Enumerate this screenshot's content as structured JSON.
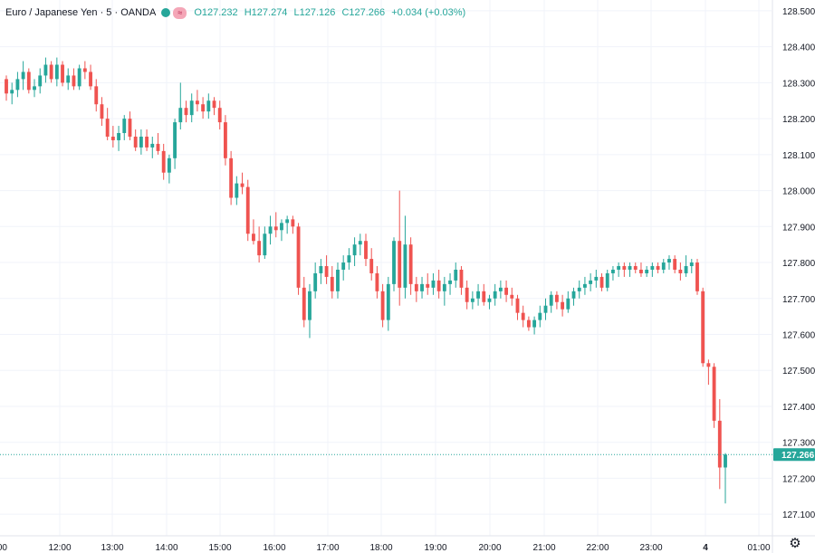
{
  "legend": {
    "symbol": "Euro / Japanese Yen · 5 · OANDA",
    "open": "O127.232",
    "high": "H127.274",
    "low": "L127.126",
    "close": "C127.266",
    "change": "+0.034 (+0.03%)",
    "tag_icon": "≈"
  },
  "colors": {
    "up": "#26a69a",
    "down": "#ef5350",
    "grid": "#f0f3fa",
    "price_line": "#26a69a"
  },
  "settings_icon": "gear-icon",
  "chart_data": {
    "type": "candlestick",
    "title": "Euro / Japanese Yen · 5 · OANDA",
    "ylim": [
      127.04,
      128.53
    ],
    "y_ticks": [
      "128.500",
      "128.400",
      "128.300",
      "128.200",
      "128.100",
      "128.000",
      "127.900",
      "127.800",
      "127.700",
      "127.600",
      "127.500",
      "127.400",
      "127.300",
      "127.200",
      "127.100"
    ],
    "x_ticks": [
      "00",
      "12:00",
      "13:00",
      "14:00",
      "15:00",
      "16:00",
      "17:00",
      "18:00",
      "19:00",
      "20:00",
      "21:00",
      "22:00",
      "23:00",
      "4",
      "01:00"
    ],
    "last_price": "127.266",
    "last_price_value": 127.266,
    "candles": [
      [
        128.31,
        128.32,
        128.25,
        128.27
      ],
      [
        128.27,
        128.3,
        128.24,
        128.28
      ],
      [
        128.28,
        128.33,
        128.26,
        128.31
      ],
      [
        128.31,
        128.36,
        128.28,
        128.33
      ],
      [
        128.33,
        128.34,
        128.27,
        128.28
      ],
      [
        128.28,
        128.31,
        128.26,
        128.29
      ],
      [
        128.29,
        128.34,
        128.27,
        128.32
      ],
      [
        128.32,
        128.37,
        128.3,
        128.35
      ],
      [
        128.35,
        128.36,
        128.3,
        128.31
      ],
      [
        128.31,
        128.37,
        128.29,
        128.35
      ],
      [
        128.35,
        128.36,
        128.29,
        128.3
      ],
      [
        128.3,
        128.34,
        128.28,
        128.32
      ],
      [
        128.32,
        128.34,
        128.28,
        128.29
      ],
      [
        128.29,
        128.35,
        128.28,
        128.34
      ],
      [
        128.34,
        128.36,
        128.31,
        128.33
      ],
      [
        128.33,
        128.35,
        128.28,
        128.29
      ],
      [
        128.29,
        128.31,
        128.22,
        128.24
      ],
      [
        128.24,
        128.26,
        128.18,
        128.2
      ],
      [
        128.2,
        128.23,
        128.14,
        128.15
      ],
      [
        128.15,
        128.18,
        128.12,
        128.14
      ],
      [
        128.14,
        128.18,
        128.11,
        128.16
      ],
      [
        128.16,
        128.21,
        128.14,
        128.2
      ],
      [
        128.2,
        128.22,
        128.14,
        128.15
      ],
      [
        128.15,
        128.17,
        128.11,
        128.12
      ],
      [
        128.12,
        128.17,
        128.1,
        128.15
      ],
      [
        128.15,
        128.17,
        128.11,
        128.12
      ],
      [
        128.12,
        128.15,
        128.09,
        128.13
      ],
      [
        128.13,
        128.16,
        128.1,
        128.11
      ],
      [
        128.11,
        128.13,
        128.03,
        128.05
      ],
      [
        128.05,
        128.1,
        128.02,
        128.09
      ],
      [
        128.09,
        128.2,
        128.06,
        128.19
      ],
      [
        128.19,
        128.3,
        128.17,
        128.23
      ],
      [
        128.23,
        128.25,
        128.19,
        128.21
      ],
      [
        128.21,
        128.27,
        128.19,
        128.25
      ],
      [
        128.25,
        128.28,
        128.22,
        128.24
      ],
      [
        128.24,
        128.26,
        128.2,
        128.22
      ],
      [
        128.22,
        128.27,
        128.2,
        128.25
      ],
      [
        128.25,
        128.26,
        128.21,
        128.23
      ],
      [
        128.23,
        128.25,
        128.17,
        128.19
      ],
      [
        128.19,
        128.21,
        128.07,
        128.09
      ],
      [
        128.09,
        128.11,
        127.96,
        127.98
      ],
      [
        127.98,
        128.04,
        127.96,
        128.02
      ],
      [
        128.02,
        128.05,
        127.99,
        128.01
      ],
      [
        128.01,
        128.03,
        127.86,
        127.88
      ],
      [
        127.88,
        127.92,
        127.85,
        127.86
      ],
      [
        127.86,
        127.9,
        127.8,
        127.82
      ],
      [
        127.82,
        127.9,
        127.81,
        127.88
      ],
      [
        127.88,
        127.93,
        127.85,
        127.9
      ],
      [
        127.9,
        127.94,
        127.87,
        127.89
      ],
      [
        127.89,
        127.92,
        127.86,
        127.91
      ],
      [
        127.91,
        127.93,
        127.88,
        127.92
      ],
      [
        127.92,
        127.93,
        127.88,
        127.9
      ],
      [
        127.9,
        127.91,
        127.71,
        127.73
      ],
      [
        127.73,
        127.76,
        127.62,
        127.64
      ],
      [
        127.64,
        127.74,
        127.59,
        127.72
      ],
      [
        127.72,
        127.8,
        127.7,
        127.77
      ],
      [
        127.77,
        127.81,
        127.74,
        127.79
      ],
      [
        127.79,
        127.82,
        127.74,
        127.76
      ],
      [
        127.76,
        127.79,
        127.7,
        127.72
      ],
      [
        127.72,
        127.8,
        127.7,
        127.78
      ],
      [
        127.78,
        127.82,
        127.75,
        127.8
      ],
      [
        127.8,
        127.84,
        127.78,
        127.82
      ],
      [
        127.82,
        127.87,
        127.79,
        127.85
      ],
      [
        127.85,
        127.88,
        127.82,
        127.86
      ],
      [
        127.86,
        127.88,
        127.79,
        127.81
      ],
      [
        127.81,
        127.84,
        127.75,
        127.77
      ],
      [
        127.77,
        127.79,
        127.7,
        127.72
      ],
      [
        127.72,
        127.74,
        127.62,
        127.64
      ],
      [
        127.64,
        127.76,
        127.61,
        127.74
      ],
      [
        127.74,
        127.87,
        127.72,
        127.86
      ],
      [
        127.86,
        128.0,
        127.68,
        127.73
      ],
      [
        127.73,
        127.93,
        127.7,
        127.85
      ],
      [
        127.85,
        127.87,
        127.71,
        127.74
      ],
      [
        127.74,
        127.76,
        127.69,
        127.72
      ],
      [
        127.72,
        127.76,
        127.7,
        127.74
      ],
      [
        127.74,
        127.77,
        127.71,
        127.73
      ],
      [
        127.73,
        127.77,
        127.71,
        127.75
      ],
      [
        127.75,
        127.78,
        127.7,
        127.72
      ],
      [
        127.72,
        127.76,
        127.68,
        127.74
      ],
      [
        127.74,
        127.77,
        127.71,
        127.75
      ],
      [
        127.75,
        127.8,
        127.73,
        127.78
      ],
      [
        127.78,
        127.79,
        127.71,
        127.73
      ],
      [
        127.73,
        127.75,
        127.67,
        127.69
      ],
      [
        127.69,
        127.72,
        127.67,
        127.7
      ],
      [
        127.7,
        127.74,
        127.68,
        127.72
      ],
      [
        127.72,
        127.74,
        127.68,
        127.69
      ],
      [
        127.69,
        127.71,
        127.67,
        127.7
      ],
      [
        127.7,
        127.74,
        127.68,
        127.72
      ],
      [
        127.72,
        127.75,
        127.7,
        127.73
      ],
      [
        127.73,
        127.75,
        127.69,
        127.71
      ],
      [
        127.71,
        127.73,
        127.68,
        127.7
      ],
      [
        127.7,
        127.71,
        127.64,
        127.66
      ],
      [
        127.66,
        127.68,
        127.62,
        127.64
      ],
      [
        127.64,
        127.65,
        127.61,
        127.62
      ],
      [
        127.62,
        127.65,
        127.6,
        127.64
      ],
      [
        127.64,
        127.68,
        127.62,
        127.66
      ],
      [
        127.66,
        127.7,
        127.64,
        127.68
      ],
      [
        127.68,
        127.72,
        127.66,
        127.71
      ],
      [
        127.71,
        127.72,
        127.67,
        127.69
      ],
      [
        127.69,
        127.71,
        127.65,
        127.67
      ],
      [
        127.67,
        127.72,
        127.66,
        127.7
      ],
      [
        127.7,
        127.73,
        127.68,
        127.72
      ],
      [
        127.72,
        127.75,
        127.7,
        127.73
      ],
      [
        127.73,
        127.76,
        127.71,
        127.74
      ],
      [
        127.74,
        127.77,
        127.72,
        127.75
      ],
      [
        127.75,
        127.78,
        127.73,
        127.76
      ],
      [
        127.76,
        127.77,
        127.72,
        127.73
      ],
      [
        127.73,
        127.78,
        127.72,
        127.77
      ],
      [
        127.77,
        127.79,
        127.75,
        127.78
      ],
      [
        127.78,
        127.8,
        127.76,
        127.79
      ],
      [
        127.79,
        127.8,
        127.76,
        127.78
      ],
      [
        127.78,
        127.8,
        127.76,
        127.79
      ],
      [
        127.79,
        127.8,
        127.77,
        127.78
      ],
      [
        127.78,
        127.8,
        127.76,
        127.77
      ],
      [
        127.77,
        127.79,
        127.76,
        127.78
      ],
      [
        127.78,
        127.8,
        127.76,
        127.79
      ],
      [
        127.79,
        127.8,
        127.77,
        127.78
      ],
      [
        127.78,
        127.81,
        127.77,
        127.8
      ],
      [
        127.8,
        127.82,
        127.78,
        127.81
      ],
      [
        127.81,
        127.82,
        127.77,
        127.78
      ],
      [
        127.78,
        127.8,
        127.75,
        127.77
      ],
      [
        127.77,
        127.82,
        127.76,
        127.79
      ],
      [
        127.79,
        127.81,
        127.77,
        127.8
      ],
      [
        127.8,
        127.81,
        127.71,
        127.72
      ],
      [
        127.72,
        127.73,
        127.51,
        127.52
      ],
      [
        127.52,
        127.53,
        127.46,
        127.51
      ],
      [
        127.51,
        127.52,
        127.34,
        127.36
      ],
      [
        127.36,
        127.42,
        127.17,
        127.23
      ],
      [
        127.23,
        127.27,
        127.13,
        127.266
      ]
    ]
  }
}
